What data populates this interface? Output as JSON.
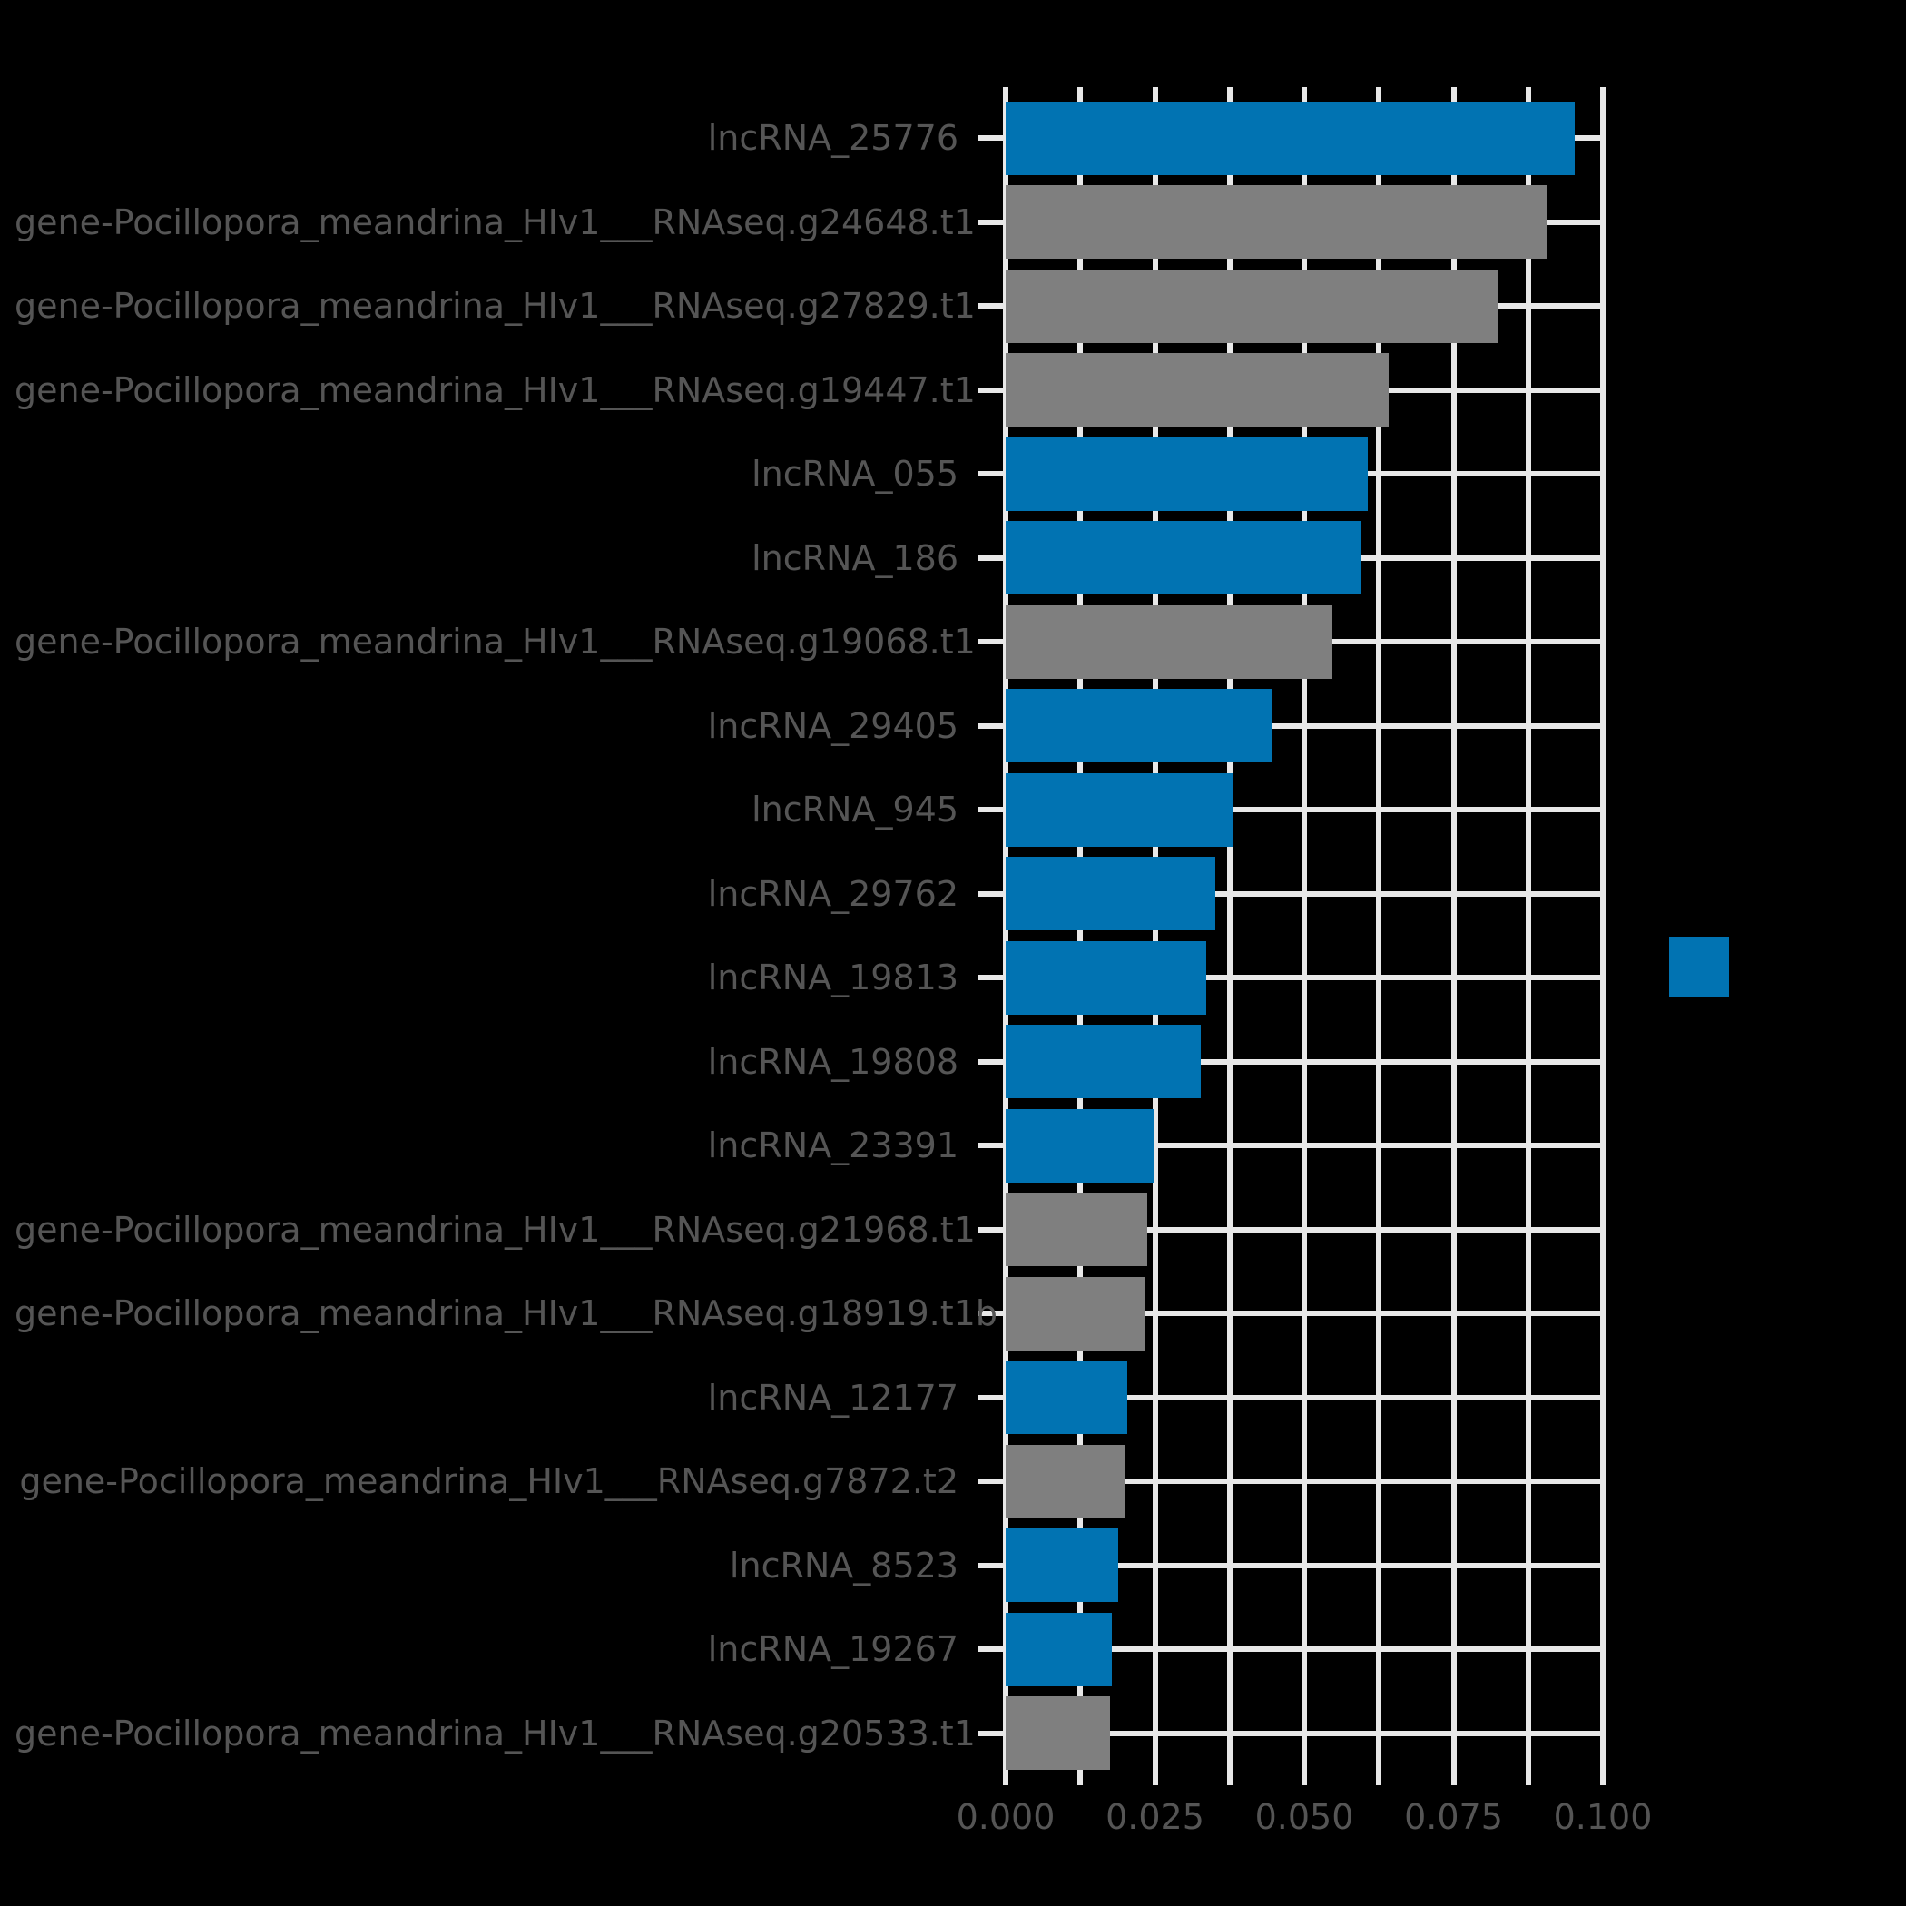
{
  "figure": {
    "background_color": "#000000",
    "grid_color": "#e8e8e8",
    "tick_label_color": "#555555",
    "lncRNA_bar_color": "#0173b2",
    "gene_bar_color": "#7f7f7f"
  },
  "legend": {
    "entries": [
      {
        "swatch_color": "#0173b2",
        "label": ""
      }
    ]
  },
  "chart_data": {
    "type": "bar",
    "orientation": "horizontal",
    "title": "",
    "xlabel": "",
    "ylabel": "",
    "xlim": [
      0,
      0.1
    ],
    "x_tick_values": [
      0,
      0.025,
      0.05,
      0.075,
      0.1
    ],
    "x_tick_labels": [
      "0.000",
      "0.025",
      "0.050",
      "0.075",
      "0.100"
    ],
    "x_minor_grid_step": 0.0125,
    "grid": "on",
    "legend_position": "outside-right",
    "categories": [
      "lncRNA_25776",
      "gene-Pocillopora_meandrina_HIv1___RNAseq.g24648.t1",
      "gene-Pocillopora_meandrina_HIv1___RNAseq.g27829.t1",
      "gene-Pocillopora_meandrina_HIv1___RNAseq.g19447.t1",
      "lncRNA_055",
      "lncRNA_186",
      "gene-Pocillopora_meandrina_HIv1___RNAseq.g19068.t1",
      "lncRNA_29405",
      "lncRNA_945",
      "lncRNA_29762",
      "lncRNA_19813",
      "lncRNA_19808",
      "lncRNA_23391",
      "gene-Pocillopora_meandrina_HIv1___RNAseq.g21968.t1",
      "gene-Pocillopora_meandrina_HIv1___RNAseq.g18919.t1b",
      "lncRNA_12177",
      "gene-Pocillopora_meandrina_HIv1___RNAseq.g7872.t2",
      "lncRNA_8523",
      "lncRNA_19267",
      "gene-Pocillopora_meandrina_HIv1___RNAseq.g20533.t1"
    ],
    "values": [
      0.0953,
      0.0906,
      0.0825,
      0.0641,
      0.0607,
      0.0594,
      0.0547,
      0.0447,
      0.038,
      0.0351,
      0.0336,
      0.0327,
      0.0248,
      0.0237,
      0.0234,
      0.0204,
      0.0199,
      0.0189,
      0.0178,
      0.0175
    ],
    "colors": [
      "#0173b2",
      "#7f7f7f",
      "#7f7f7f",
      "#7f7f7f",
      "#0173b2",
      "#0173b2",
      "#7f7f7f",
      "#0173b2",
      "#0173b2",
      "#0173b2",
      "#0173b2",
      "#0173b2",
      "#0173b2",
      "#7f7f7f",
      "#7f7f7f",
      "#0173b2",
      "#7f7f7f",
      "#0173b2",
      "#0173b2",
      "#7f7f7f"
    ]
  }
}
